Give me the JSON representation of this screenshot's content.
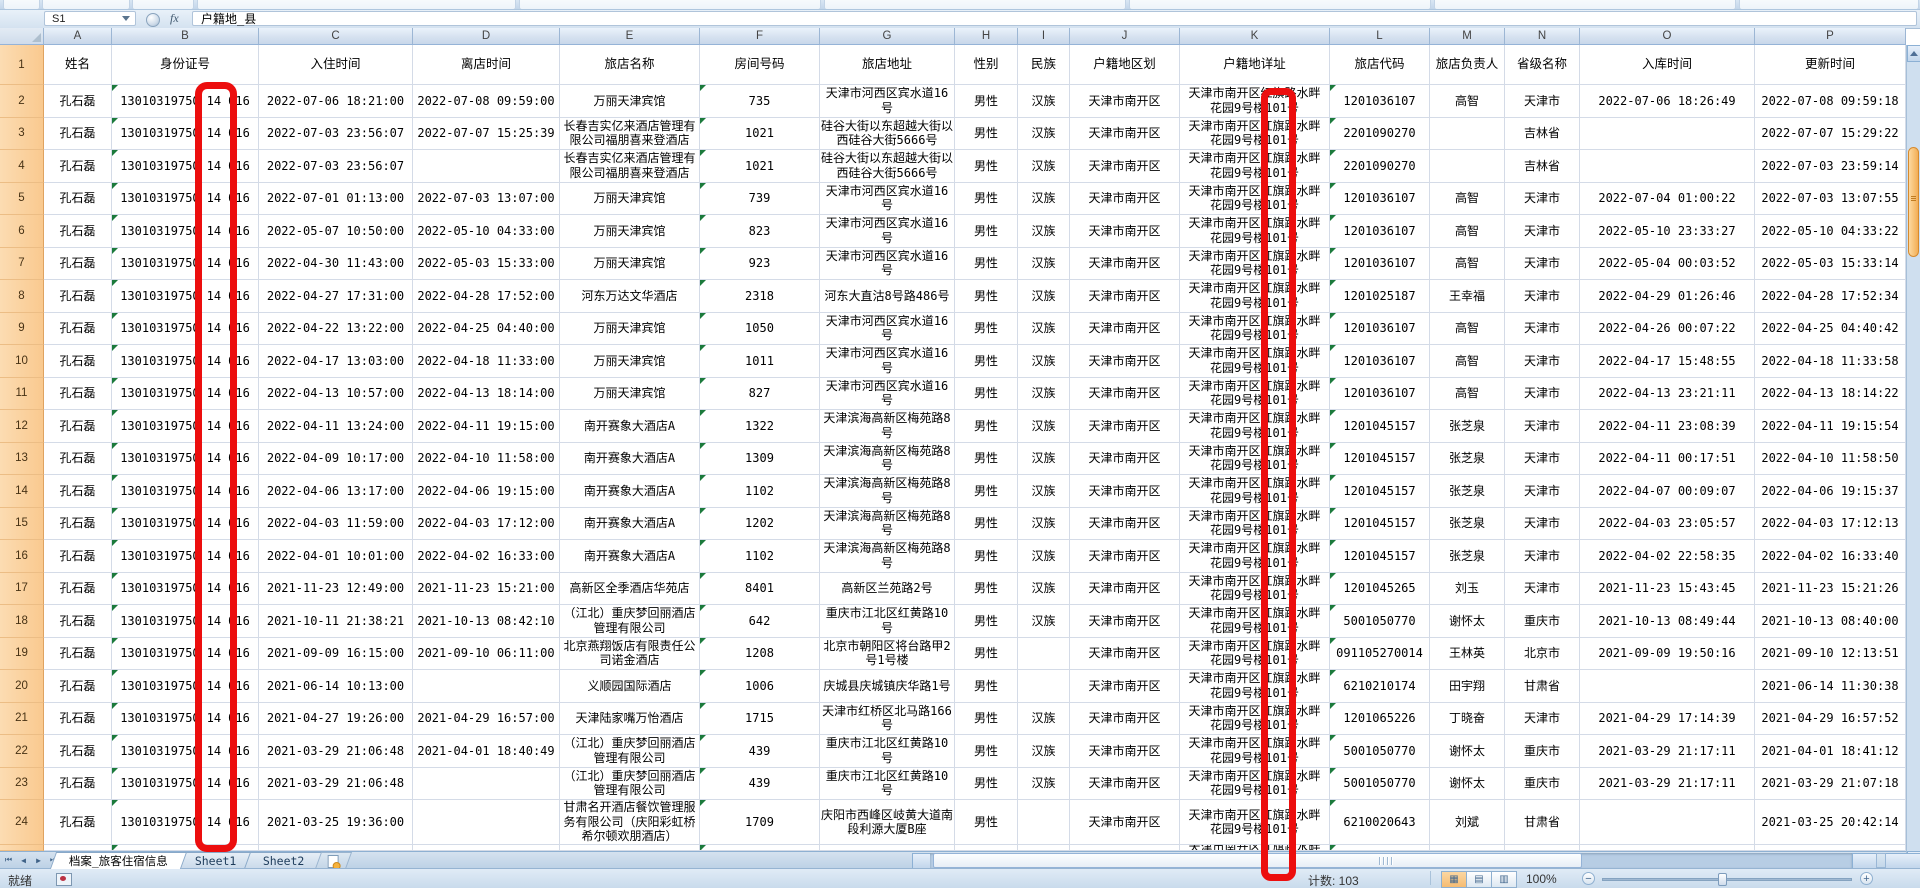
{
  "window": {
    "name_box": "S1",
    "fx_label": "fx",
    "formula_value": "户籍地_县"
  },
  "grid": {
    "columns": [
      {
        "letter": "A",
        "label": "姓名"
      },
      {
        "letter": "B",
        "label": "身份证号"
      },
      {
        "letter": "C",
        "label": "入住时间"
      },
      {
        "letter": "D",
        "label": "离店时间"
      },
      {
        "letter": "E",
        "label": "旅店名称"
      },
      {
        "letter": "F",
        "label": "房间号码"
      },
      {
        "letter": "G",
        "label": "旅店地址"
      },
      {
        "letter": "H",
        "label": "性别"
      },
      {
        "letter": "I",
        "label": "民族"
      },
      {
        "letter": "J",
        "label": "户籍地区划"
      },
      {
        "letter": "K",
        "label": "户籍地详址"
      },
      {
        "letter": "L",
        "label": "旅店代码"
      },
      {
        "letter": "M",
        "label": "旅店负责人"
      },
      {
        "letter": "N",
        "label": "省级名称"
      },
      {
        "letter": "O",
        "label": "入库时间"
      },
      {
        "letter": "P",
        "label": "更新时间"
      }
    ],
    "header_row_number": "1",
    "rows": [
      {
        "n": "2",
        "name": "孔石磊",
        "id": [
          "13010319750",
          "14",
          "016"
        ],
        "checkin": "2022-07-06 18:21:00",
        "checkout": "2022-07-08 09:59:00",
        "hotel": "万丽天津宾馆",
        "room": "735",
        "hotel_addr": "天津市河西区宾水道16号",
        "gender": "男性",
        "ethnicity": "汉族",
        "region": "天津市南开区",
        "home": [
          [
            "天津市南开区",
            "红",
            "旗路水畔"
          ],
          [
            "花园9号楼",
            "1",
            "01号"
          ]
        ],
        "code": "1201036107",
        "manager": "高智",
        "province": "天津市",
        "stored": "2022-07-06 18:26:49",
        "updated": "2022-07-08 09:59:18"
      },
      {
        "n": "3",
        "name": "孔石磊",
        "id": [
          "13010319750",
          "14",
          "016"
        ],
        "checkin": "2022-07-03 23:56:07",
        "checkout": "2022-07-07 15:25:39",
        "hotel": "长春吉实亿来酒店管理有限公司福朋喜来登酒店",
        "room": "1021",
        "hotel_addr": "硅谷大街以东超越大街以西硅谷大街5666号",
        "gender": "男性",
        "ethnicity": "汉族",
        "region": "天津市南开区",
        "home": [
          [
            "天津市南开区",
            "红",
            "旗路水畔"
          ],
          [
            "花园9号楼",
            "1",
            "01号"
          ]
        ],
        "code": "2201090270",
        "manager": "",
        "province": "吉林省",
        "stored": "",
        "updated": "2022-07-07 15:29:22"
      },
      {
        "n": "4",
        "name": "孔石磊",
        "id": [
          "13010319750",
          "14",
          "016"
        ],
        "checkin": "2022-07-03 23:56:07",
        "checkout": "",
        "hotel": "长春吉实亿来酒店管理有限公司福朋喜来登酒店",
        "room": "1021",
        "hotel_addr": "硅谷大街以东超越大街以西硅谷大街5666号",
        "gender": "男性",
        "ethnicity": "汉族",
        "region": "天津市南开区",
        "home": [
          [
            "天津市南开区",
            "红",
            "旗路水畔"
          ],
          [
            "花园9号楼",
            "1",
            "01号"
          ]
        ],
        "code": "2201090270",
        "manager": "",
        "province": "吉林省",
        "stored": "",
        "updated": "2022-07-03 23:59:14"
      },
      {
        "n": "5",
        "name": "孔石磊",
        "id": [
          "13010319750",
          "14",
          "016"
        ],
        "checkin": "2022-07-01 01:13:00",
        "checkout": "2022-07-03 13:07:00",
        "hotel": "万丽天津宾馆",
        "room": "739",
        "hotel_addr": "天津市河西区宾水道16号",
        "gender": "男性",
        "ethnicity": "汉族",
        "region": "天津市南开区",
        "home": [
          [
            "天津市南开区",
            "红",
            "旗路水畔"
          ],
          [
            "花园9号楼",
            "1",
            "01号"
          ]
        ],
        "code": "1201036107",
        "manager": "高智",
        "province": "天津市",
        "stored": "2022-07-04 01:00:22",
        "updated": "2022-07-03 13:07:55"
      },
      {
        "n": "6",
        "name": "孔石磊",
        "id": [
          "13010319750",
          "14",
          "016"
        ],
        "checkin": "2022-05-07 10:50:00",
        "checkout": "2022-05-10 04:33:00",
        "hotel": "万丽天津宾馆",
        "room": "823",
        "hotel_addr": "天津市河西区宾水道16号",
        "gender": "男性",
        "ethnicity": "汉族",
        "region": "天津市南开区",
        "home": [
          [
            "天津市南开区",
            "红",
            "旗路水畔"
          ],
          [
            "花园9号楼",
            "1",
            "01号"
          ]
        ],
        "code": "1201036107",
        "manager": "高智",
        "province": "天津市",
        "stored": "2022-05-10 23:33:27",
        "updated": "2022-05-10 04:33:22"
      },
      {
        "n": "7",
        "name": "孔石磊",
        "id": [
          "13010319750",
          "14",
          "016"
        ],
        "checkin": "2022-04-30 11:43:00",
        "checkout": "2022-05-03 15:33:00",
        "hotel": "万丽天津宾馆",
        "room": "923",
        "hotel_addr": "天津市河西区宾水道16号",
        "gender": "男性",
        "ethnicity": "汉族",
        "region": "天津市南开区",
        "home": [
          [
            "天津市南开区",
            "红",
            "旗路水畔"
          ],
          [
            "花园9号楼",
            "1",
            "01号"
          ]
        ],
        "code": "1201036107",
        "manager": "高智",
        "province": "天津市",
        "stored": "2022-05-04 00:03:52",
        "updated": "2022-05-03 15:33:14"
      },
      {
        "n": "8",
        "name": "孔石磊",
        "id": [
          "13010319750",
          "14",
          "016"
        ],
        "checkin": "2022-04-27 17:31:00",
        "checkout": "2022-04-28 17:52:00",
        "hotel": "河东万达文华酒店",
        "room": "2318",
        "hotel_addr": "河东大直沽8号路486号",
        "gender": "男性",
        "ethnicity": "汉族",
        "region": "天津市南开区",
        "home": [
          [
            "天津市南开区",
            "红",
            "旗路水畔"
          ],
          [
            "花园9号楼",
            "1",
            "01号"
          ]
        ],
        "code": "1201025187",
        "manager": "王幸福",
        "province": "天津市",
        "stored": "2022-04-29 01:26:46",
        "updated": "2022-04-28 17:52:34"
      },
      {
        "n": "9",
        "name": "孔石磊",
        "id": [
          "13010319750",
          "14",
          "016"
        ],
        "checkin": "2022-04-22 13:22:00",
        "checkout": "2022-04-25 04:40:00",
        "hotel": "万丽天津宾馆",
        "room": "1050",
        "hotel_addr": "天津市河西区宾水道16号",
        "gender": "男性",
        "ethnicity": "汉族",
        "region": "天津市南开区",
        "home": [
          [
            "天津市南开区",
            "红",
            "旗路水畔"
          ],
          [
            "花园9号楼",
            "1",
            "01号"
          ]
        ],
        "code": "1201036107",
        "manager": "高智",
        "province": "天津市",
        "stored": "2022-04-26 00:07:22",
        "updated": "2022-04-25 04:40:42"
      },
      {
        "n": "10",
        "name": "孔石磊",
        "id": [
          "13010319750",
          "14",
          "016"
        ],
        "checkin": "2022-04-17 13:03:00",
        "checkout": "2022-04-18 11:33:00",
        "hotel": "万丽天津宾馆",
        "room": "1011",
        "hotel_addr": "天津市河西区宾水道16号",
        "gender": "男性",
        "ethnicity": "汉族",
        "region": "天津市南开区",
        "home": [
          [
            "天津市南开区",
            "红",
            "旗路水畔"
          ],
          [
            "花园9号楼",
            "1",
            "01号"
          ]
        ],
        "code": "1201036107",
        "manager": "高智",
        "province": "天津市",
        "stored": "2022-04-17 15:48:55",
        "updated": "2022-04-18 11:33:58"
      },
      {
        "n": "11",
        "name": "孔石磊",
        "id": [
          "13010319750",
          "14",
          "016"
        ],
        "checkin": "2022-04-13 10:57:00",
        "checkout": "2022-04-13 18:14:00",
        "hotel": "万丽天津宾馆",
        "room": "827",
        "hotel_addr": "天津市河西区宾水道16号",
        "gender": "男性",
        "ethnicity": "汉族",
        "region": "天津市南开区",
        "home": [
          [
            "天津市南开区",
            "红",
            "旗路水畔"
          ],
          [
            "花园9号楼",
            "1",
            "01号"
          ]
        ],
        "code": "1201036107",
        "manager": "高智",
        "province": "天津市",
        "stored": "2022-04-13 23:21:11",
        "updated": "2022-04-13 18:14:22"
      },
      {
        "n": "12",
        "name": "孔石磊",
        "id": [
          "13010319750",
          "14",
          "016"
        ],
        "checkin": "2022-04-11 13:24:00",
        "checkout": "2022-04-11 19:15:00",
        "hotel": "南开赛象大酒店A",
        "room": "1322",
        "hotel_addr": "天津滨海高新区梅苑路8号",
        "gender": "男性",
        "ethnicity": "汉族",
        "region": "天津市南开区",
        "home": [
          [
            "天津市南开区",
            "红",
            "旗路水畔"
          ],
          [
            "花园9号楼",
            "1",
            "01号"
          ]
        ],
        "code": "1201045157",
        "manager": "张芝泉",
        "province": "天津市",
        "stored": "2022-04-11 23:08:39",
        "updated": "2022-04-11 19:15:54"
      },
      {
        "n": "13",
        "name": "孔石磊",
        "id": [
          "13010319750",
          "14",
          "016"
        ],
        "checkin": "2022-04-09 10:17:00",
        "checkout": "2022-04-10 11:58:00",
        "hotel": "南开赛象大酒店A",
        "room": "1309",
        "hotel_addr": "天津滨海高新区梅苑路8号",
        "gender": "男性",
        "ethnicity": "汉族",
        "region": "天津市南开区",
        "home": [
          [
            "天津市南开区",
            "红",
            "旗路水畔"
          ],
          [
            "花园9号楼",
            "1",
            "01号"
          ]
        ],
        "code": "1201045157",
        "manager": "张芝泉",
        "province": "天津市",
        "stored": "2022-04-11 00:17:51",
        "updated": "2022-04-10 11:58:50"
      },
      {
        "n": "14",
        "name": "孔石磊",
        "id": [
          "13010319750",
          "14",
          "016"
        ],
        "checkin": "2022-04-06 13:17:00",
        "checkout": "2022-04-06 19:15:00",
        "hotel": "南开赛象大酒店A",
        "room": "1102",
        "hotel_addr": "天津滨海高新区梅苑路8号",
        "gender": "男性",
        "ethnicity": "汉族",
        "region": "天津市南开区",
        "home": [
          [
            "天津市南开区",
            "红",
            "旗路水畔"
          ],
          [
            "花园9号楼",
            "1",
            "01号"
          ]
        ],
        "code": "1201045157",
        "manager": "张芝泉",
        "province": "天津市",
        "stored": "2022-04-07 00:09:07",
        "updated": "2022-04-06 19:15:37"
      },
      {
        "n": "15",
        "name": "孔石磊",
        "id": [
          "13010319750",
          "14",
          "016"
        ],
        "checkin": "2022-04-03 11:59:00",
        "checkout": "2022-04-03 17:12:00",
        "hotel": "南开赛象大酒店A",
        "room": "1202",
        "hotel_addr": "天津滨海高新区梅苑路8号",
        "gender": "男性",
        "ethnicity": "汉族",
        "region": "天津市南开区",
        "home": [
          [
            "天津市南开区",
            "红",
            "旗路水畔"
          ],
          [
            "花园9号楼",
            "1",
            "01号"
          ]
        ],
        "code": "1201045157",
        "manager": "张芝泉",
        "province": "天津市",
        "stored": "2022-04-03 23:05:57",
        "updated": "2022-04-03 17:12:13"
      },
      {
        "n": "16",
        "name": "孔石磊",
        "id": [
          "13010319750",
          "14",
          "016"
        ],
        "checkin": "2022-04-01 10:01:00",
        "checkout": "2022-04-02 16:33:00",
        "hotel": "南开赛象大酒店A",
        "room": "1102",
        "hotel_addr": "天津滨海高新区梅苑路8号",
        "gender": "男性",
        "ethnicity": "汉族",
        "region": "天津市南开区",
        "home": [
          [
            "天津市南开区",
            "红",
            "旗路水畔"
          ],
          [
            "花园9号楼",
            "1",
            "01号"
          ]
        ],
        "code": "1201045157",
        "manager": "张芝泉",
        "province": "天津市",
        "stored": "2022-04-02 22:58:35",
        "updated": "2022-04-02 16:33:40"
      },
      {
        "n": "17",
        "name": "孔石磊",
        "id": [
          "13010319750",
          "14",
          "016"
        ],
        "checkin": "2021-11-23 12:49:00",
        "checkout": "2021-11-23 15:21:00",
        "hotel": "高新区全季酒店华苑店",
        "room": "8401",
        "hotel_addr": "高新区兰苑路2号",
        "gender": "男性",
        "ethnicity": "汉族",
        "region": "天津市南开区",
        "home": [
          [
            "天津市南开区",
            "红",
            "旗路水畔"
          ],
          [
            "花园9号楼",
            "1",
            "01号"
          ]
        ],
        "code": "1201045265",
        "manager": "刘玉",
        "province": "天津市",
        "stored": "2021-11-23 15:43:45",
        "updated": "2021-11-23 15:21:26"
      },
      {
        "n": "18",
        "name": "孔石磊",
        "id": [
          "13010319750",
          "14",
          "016"
        ],
        "checkin": "2021-10-11 21:38:21",
        "checkout": "2021-10-13 08:42:10",
        "hotel": "（江北）重庆梦回丽酒店管理有限公司",
        "room": "642",
        "hotel_addr": "重庆市江北区红黄路10号",
        "gender": "男性",
        "ethnicity": "汉族",
        "region": "天津市南开区",
        "home": [
          [
            "天津市南开区",
            "红",
            "旗路水畔"
          ],
          [
            "花园9号楼",
            "1",
            "01号"
          ]
        ],
        "code": "5001050770",
        "manager": "谢怀太",
        "province": "重庆市",
        "stored": "2021-10-13 08:49:44",
        "updated": "2021-10-13 08:40:00"
      },
      {
        "n": "19",
        "name": "孔石磊",
        "id": [
          "13010319750",
          "14",
          "016"
        ],
        "checkin": "2021-09-09 16:15:00",
        "checkout": "2021-09-10 06:11:00",
        "hotel": "北京燕翔饭店有限责任公司诺金酒店",
        "room": "1208",
        "hotel_addr": "北京市朝阳区将台路甲2号1号楼",
        "gender": "男性",
        "ethnicity": "",
        "region": "天津市南开区",
        "home": [
          [
            "天津市南开区",
            "红",
            "旗路水畔"
          ],
          [
            "花园9号楼",
            "1",
            "01号"
          ]
        ],
        "code": "091105270014",
        "manager": "王林英",
        "province": "北京市",
        "stored": "2021-09-09 19:50:16",
        "updated": "2021-09-10 12:13:51"
      },
      {
        "n": "20",
        "name": "孔石磊",
        "id": [
          "13010319750",
          "14",
          "016"
        ],
        "checkin": "2021-06-14 10:13:00",
        "checkout": "",
        "hotel": "义顺园国际酒店",
        "room": "1006",
        "hotel_addr": "庆城县庆城镇庆华路1号",
        "gender": "男性",
        "ethnicity": "",
        "region": "天津市南开区",
        "home": [
          [
            "天津市南开区",
            "红",
            "旗路水畔"
          ],
          [
            "花园9号楼",
            "1",
            "01号"
          ]
        ],
        "code": "6210210174",
        "manager": "田宇翔",
        "province": "甘肃省",
        "stored": "",
        "updated": "2021-06-14 11:30:38"
      },
      {
        "n": "21",
        "name": "孔石磊",
        "id": [
          "13010319750",
          "14",
          "016"
        ],
        "checkin": "2021-04-27 19:26:00",
        "checkout": "2021-04-29 16:57:00",
        "hotel": "天津陆家嘴万怡酒店",
        "room": "1715",
        "hotel_addr": "天津市红桥区北马路166号",
        "gender": "男性",
        "ethnicity": "汉族",
        "region": "天津市南开区",
        "home": [
          [
            "天津市南开区",
            "红",
            "旗路水畔"
          ],
          [
            "花园9号楼",
            "1",
            "01号"
          ]
        ],
        "code": "1201065226",
        "manager": "丁晓奋",
        "province": "天津市",
        "stored": "2021-04-29 17:14:39",
        "updated": "2021-04-29 16:57:52"
      },
      {
        "n": "22",
        "name": "孔石磊",
        "id": [
          "13010319750",
          "14",
          "016"
        ],
        "checkin": "2021-03-29 21:06:48",
        "checkout": "2021-04-01 18:40:49",
        "hotel": "（江北）重庆梦回丽酒店管理有限公司",
        "room": "439",
        "hotel_addr": "重庆市江北区红黄路10号",
        "gender": "男性",
        "ethnicity": "汉族",
        "region": "天津市南开区",
        "home": [
          [
            "天津市南开区",
            "红",
            "旗路水畔"
          ],
          [
            "花园9号楼",
            "1",
            "01号"
          ]
        ],
        "code": "5001050770",
        "manager": "谢怀太",
        "province": "重庆市",
        "stored": "2021-03-29 21:17:11",
        "updated": "2021-04-01 18:41:12"
      },
      {
        "n": "23",
        "name": "孔石磊",
        "id": [
          "13010319750",
          "14",
          "016"
        ],
        "checkin": "2021-03-29 21:06:48",
        "checkout": "",
        "hotel": "（江北）重庆梦回丽酒店管理有限公司",
        "room": "439",
        "hotel_addr": "重庆市江北区红黄路10号",
        "gender": "男性",
        "ethnicity": "汉族",
        "region": "天津市南开区",
        "home": [
          [
            "天津市南开区",
            "红",
            "旗路水畔"
          ],
          [
            "花园9号楼",
            "1",
            "01号"
          ]
        ],
        "code": "5001050770",
        "manager": "谢怀太",
        "province": "重庆市",
        "stored": "2021-03-29 21:17:11",
        "updated": "2021-03-29 21:07:18"
      },
      {
        "n": "24",
        "name": "孔石磊",
        "id": [
          "13010319750",
          "14",
          "016"
        ],
        "checkin": "2021-03-25 19:36:00",
        "checkout": "",
        "hotel": "甘肃名开酒店餐饮管理服务有限公司（庆阳彩虹桥希尔顿欢朋酒店）",
        "room": "1709",
        "hotel_addr": "庆阳市西峰区岐黄大道南段利源大厦B座",
        "gender": "男性",
        "ethnicity": "",
        "region": "天津市南开区",
        "home": [
          [
            "天津市南开区",
            "红",
            "旗路水畔"
          ],
          [
            "花园9号楼",
            "1",
            "01号"
          ]
        ],
        "code": "6210020643",
        "manager": "刘斌",
        "province": "甘肃省",
        "stored": "",
        "updated": "2021-03-25 20:42:14"
      },
      {
        "n": "",
        "name": "",
        "id": "",
        "checkin": "",
        "checkout": "",
        "hotel": "",
        "room": "",
        "hotel_addr": "",
        "gender": "",
        "ethnicity": "",
        "region": "",
        "home": [
          [
            "天津市南开区",
            "红",
            "旗路水畔"
          ]
        ],
        "code": "",
        "manager": "",
        "province": "",
        "stored": "",
        "updated": ""
      }
    ]
  },
  "tabs": {
    "items": [
      {
        "label": "档案_旅客住宿信息",
        "active": true
      },
      {
        "label": "Sheet1",
        "active": false
      },
      {
        "label": "Sheet2",
        "active": false
      }
    ]
  },
  "status": {
    "ready": "就绪",
    "count": "计数: 103",
    "zoom": "100%"
  },
  "icons": {
    "name_dropdown": "▼",
    "nav_first": "⏮",
    "nav_prev": "◀",
    "nav_next": "▶",
    "nav_last": "⏭",
    "view_normal": "▦",
    "view_layout": "▤",
    "view_break": "▥",
    "zoom_minus": "−",
    "zoom_plus": "+"
  },
  "colors": {
    "annotation_red": "#ec0e0e",
    "row_header_bg": "#f9c98f",
    "error_flag_green": "#1c7a3c",
    "vscroll_thumb": "#f3ae55"
  }
}
